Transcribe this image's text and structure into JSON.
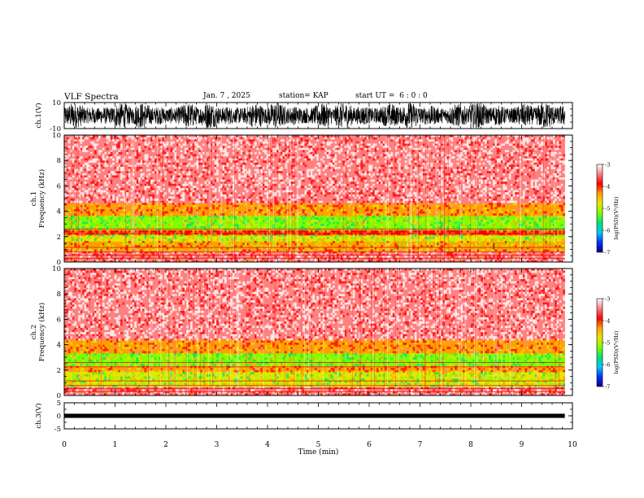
{
  "header": {
    "title": "VLF Spectra",
    "date": "Jan. 7 , 2025",
    "station": "station= KAP",
    "start_time": "start UT =  6 : 0 : 0"
  },
  "chart_data": [
    {
      "type": "line",
      "panel": "ch1-waveform",
      "ylabel": "ch.1(V)",
      "ylim": [
        -10,
        10
      ],
      "ytick_labels": [
        "10",
        "-10"
      ],
      "x_range_min": [
        0,
        9.85
      ],
      "description_series": "dense noisy waveform, amplitude near full scale"
    },
    {
      "type": "heatmap",
      "panel": "ch1-spectrogram",
      "ylabel": "ch.1\nFrequency (kHz)",
      "ylim": [
        0,
        10
      ],
      "yticks": [
        0,
        2,
        4,
        6,
        8,
        10
      ],
      "x_range_min": [
        0,
        9.85
      ],
      "bands_khz": [
        {
          "from": 0.0,
          "to": 0.9,
          "level": -3.6
        },
        {
          "from": 0.9,
          "to": 1.6,
          "level": -4.5
        },
        {
          "from": 1.6,
          "to": 2.1,
          "level": -5.0
        },
        {
          "from": 2.1,
          "to": 2.5,
          "level": -4.1
        },
        {
          "from": 2.5,
          "to": 3.6,
          "level": -5.1
        },
        {
          "from": 3.6,
          "to": 4.6,
          "level": -4.2
        },
        {
          "from": 4.6,
          "to": 10.0,
          "level": -3.3
        }
      ],
      "colorbar": {
        "label": "log(PSD)(V²/Hz)",
        "ticks": [
          -3,
          -4,
          -5,
          -6,
          -7
        ],
        "range": [
          -7,
          -3
        ]
      }
    },
    {
      "type": "heatmap",
      "panel": "ch2-spectrogram",
      "ylabel": "ch.2\nFrequency (kHz)",
      "ylim": [
        0,
        10
      ],
      "yticks": [
        0,
        2,
        4,
        6,
        8,
        10
      ],
      "x_range_min": [
        0,
        9.85
      ],
      "bands_khz": [
        {
          "from": 0.0,
          "to": 0.7,
          "level": -3.5
        },
        {
          "from": 0.7,
          "to": 1.9,
          "level": -5.0
        },
        {
          "from": 1.9,
          "to": 2.3,
          "level": -4.2
        },
        {
          "from": 2.3,
          "to": 3.3,
          "level": -5.1
        },
        {
          "from": 3.3,
          "to": 4.4,
          "level": -4.2
        },
        {
          "from": 4.4,
          "to": 10.0,
          "level": -3.3
        }
      ],
      "colorbar": {
        "label": "log(PSD)(V²/Hz)",
        "ticks": [
          -3,
          -4,
          -5,
          -6,
          -7
        ],
        "range": [
          -7,
          -3
        ]
      }
    },
    {
      "type": "line",
      "panel": "ch3-waveform",
      "ylabel": "ch.3(V)",
      "ylim": [
        -5,
        5
      ],
      "ytick_labels": [
        "5",
        "0",
        "-5"
      ],
      "x_range_min": [
        0,
        9.85
      ],
      "level_v": 0,
      "band_halfwidth_v": 0.8
    }
  ],
  "x_axis": {
    "label": "Time (min)",
    "ticks": [
      0,
      1,
      2,
      3,
      4,
      5,
      6,
      7,
      8,
      9,
      10
    ],
    "range": [
      0,
      10
    ]
  },
  "colors": {
    "cmap": [
      "#00008c",
      "#0033ff",
      "#00c8ff",
      "#00e07a",
      "#7cff00",
      "#e6e600",
      "#ffa000",
      "#ff0000",
      "#ff8080",
      "#ffffff"
    ],
    "ink": "#000000"
  }
}
